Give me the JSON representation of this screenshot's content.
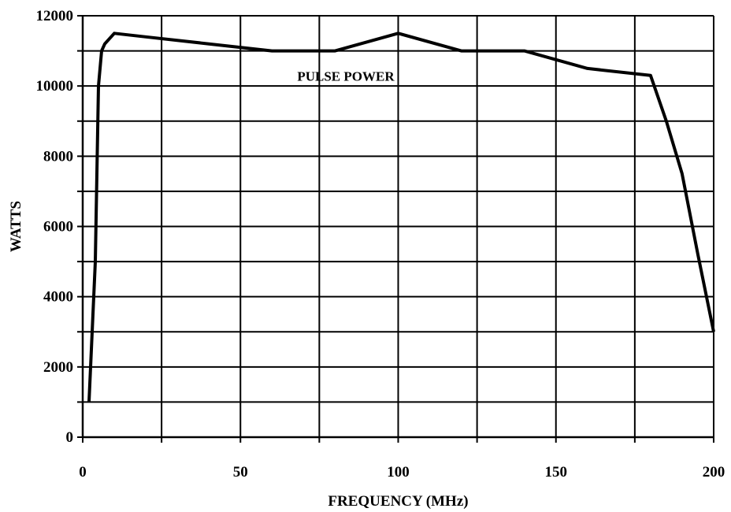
{
  "chart_data": {
    "type": "line",
    "title": "",
    "xlabel": "FREQUENCY (MHz)",
    "ylabel": "WATTS",
    "xlim": [
      0,
      200
    ],
    "ylim": [
      0,
      12000
    ],
    "x_ticks": [
      0,
      50,
      100,
      150,
      200
    ],
    "x_tick_labels": [
      "0",
      "50",
      "100",
      "150",
      "200"
    ],
    "y_ticks": [
      0,
      2000,
      4000,
      6000,
      8000,
      10000,
      12000
    ],
    "y_tick_labels": [
      "0",
      "2000",
      "4000",
      "6000",
      "8000",
      "10000",
      "12000"
    ],
    "grid": true,
    "annotation": "PULSE POWER",
    "series": [
      {
        "x": [
          2,
          4,
          5,
          6,
          7,
          10,
          20,
          40,
          60,
          80,
          100,
          120,
          140,
          160,
          180,
          185,
          190,
          195,
          200
        ],
        "values": [
          1000,
          5000,
          10000,
          11000,
          11200,
          11500,
          11400,
          11200,
          11000,
          11000,
          11500,
          11000,
          11000,
          10500,
          10300,
          9000,
          7500,
          5200,
          3000
        ]
      }
    ]
  }
}
